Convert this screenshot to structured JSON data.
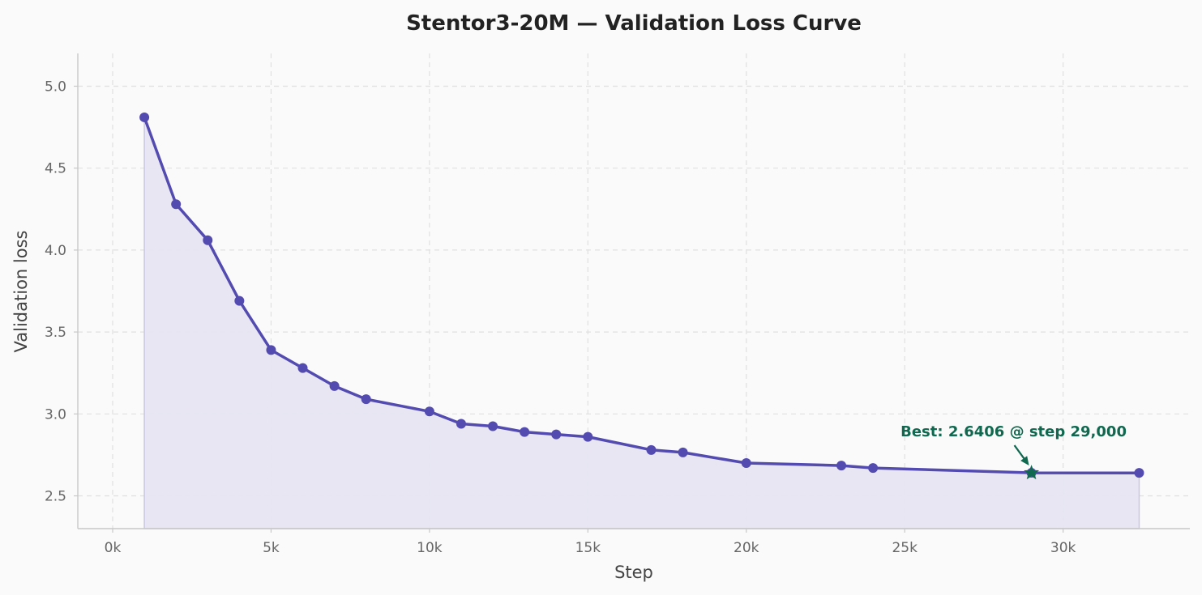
{
  "chart_data": {
    "type": "line",
    "title": "Stentor3-20M — Validation Loss Curve",
    "xlabel": "Step",
    "ylabel": "Validation loss",
    "xlim": [
      -1100,
      34000
    ],
    "ylim": [
      2.3,
      5.2
    ],
    "xticks": [
      0,
      5000,
      10000,
      15000,
      20000,
      25000,
      30000
    ],
    "xtick_labels": [
      "0k",
      "5k",
      "10k",
      "15k",
      "20k",
      "25k",
      "30k"
    ],
    "yticks": [
      2.5,
      3.0,
      3.5,
      4.0,
      4.5,
      5.0
    ],
    "ytick_labels": [
      "2.5",
      "3.0",
      "3.5",
      "4.0",
      "4.5",
      "5.0"
    ],
    "grid": true,
    "area_fill": true,
    "series": [
      {
        "x": [
          1000,
          2000,
          3000,
          4000,
          5000,
          6000,
          7000,
          8000,
          10000,
          11000,
          12000,
          13000,
          14000,
          15000,
          17000,
          18000,
          20000,
          23000,
          24000,
          29000,
          32400
        ],
        "y": [
          4.81,
          4.28,
          4.06,
          3.69,
          3.39,
          3.28,
          3.17,
          3.09,
          3.015,
          2.94,
          2.925,
          2.89,
          2.875,
          2.86,
          2.78,
          2.765,
          2.7,
          2.685,
          2.67,
          2.6406,
          2.64
        ]
      }
    ],
    "best": {
      "x": 29000,
      "y": 2.6406,
      "label": "Best: 2.6406 @ step 29,000"
    },
    "colors": {
      "line": "#534bb0",
      "fill": "#e6e5f1",
      "best": "#10694f",
      "background": "#fafafa"
    }
  }
}
